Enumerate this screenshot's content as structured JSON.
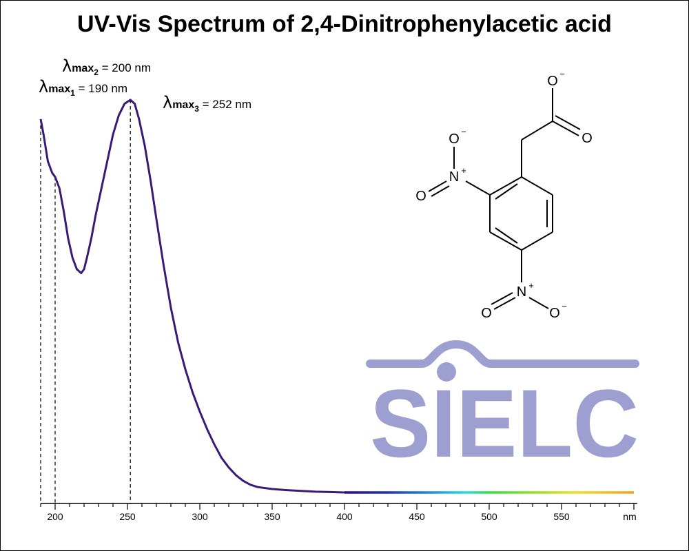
{
  "chart_data": {
    "type": "line",
    "title": "UV-Vis Spectrum of 2,4-Dinitrophenylacetic acid",
    "xlabel": "",
    "x_unit_label": "nm",
    "ylabel": "",
    "xlim": [
      190,
      600
    ],
    "x_ticks": [
      200,
      250,
      300,
      350,
      400,
      450,
      500,
      550
    ],
    "annotations": [
      {
        "id": "lmax1",
        "subscript": "1",
        "text": " = 190 nm",
        "wavelength": 190
      },
      {
        "id": "lmax2",
        "subscript": "2",
        "text": " = 200 nm",
        "wavelength": 200
      },
      {
        "id": "lmax3",
        "subscript": "3",
        "text": " = 252 nm",
        "wavelength": 252
      }
    ],
    "series": [
      {
        "x": [
          190,
          192,
          195,
          198,
          200,
          203,
          206,
          209,
          212,
          215,
          218,
          220,
          222,
          225,
          228,
          232,
          236,
          240,
          244,
          248,
          252,
          255,
          258,
          262,
          266,
          270,
          275,
          280,
          285,
          290,
          295,
          300,
          305,
          310,
          315,
          320,
          325,
          330,
          335,
          340,
          350,
          360,
          370,
          380,
          390,
          400,
          420,
          450,
          500,
          550,
          600
        ],
        "y": [
          0.97,
          0.93,
          0.86,
          0.83,
          0.82,
          0.79,
          0.73,
          0.66,
          0.61,
          0.58,
          0.57,
          0.58,
          0.61,
          0.66,
          0.72,
          0.79,
          0.86,
          0.93,
          0.98,
          1.01,
          1.02,
          1.01,
          0.97,
          0.9,
          0.81,
          0.71,
          0.59,
          0.48,
          0.39,
          0.32,
          0.26,
          0.21,
          0.165,
          0.125,
          0.09,
          0.065,
          0.045,
          0.03,
          0.02,
          0.014,
          0.009,
          0.006,
          0.004,
          0.002,
          0.001,
          0.0,
          0.0,
          0.0,
          0.0,
          0.0,
          0.0
        ]
      }
    ]
  },
  "molecule": {
    "labels": {
      "o_minus_top": "O",
      "o_acid": "O",
      "o_minus_nitro1": "O",
      "n_nitro1": "N",
      "o_nitro1": "O",
      "n_nitro2": "N",
      "o_nitro2_left": "O",
      "o_minus_nitro2": "O"
    },
    "charges": {
      "minus": "−",
      "plus": "+"
    }
  },
  "watermark": {
    "text": "SIELC",
    "color": "#9c9fd0"
  },
  "colors": {
    "curve": "#3a1a78",
    "spectrum": [
      "#2a0a8a",
      "#2030c0",
      "#1f8fe0",
      "#20e0e0",
      "#30e040",
      "#90e020",
      "#f0e020",
      "#f0a020"
    ]
  }
}
